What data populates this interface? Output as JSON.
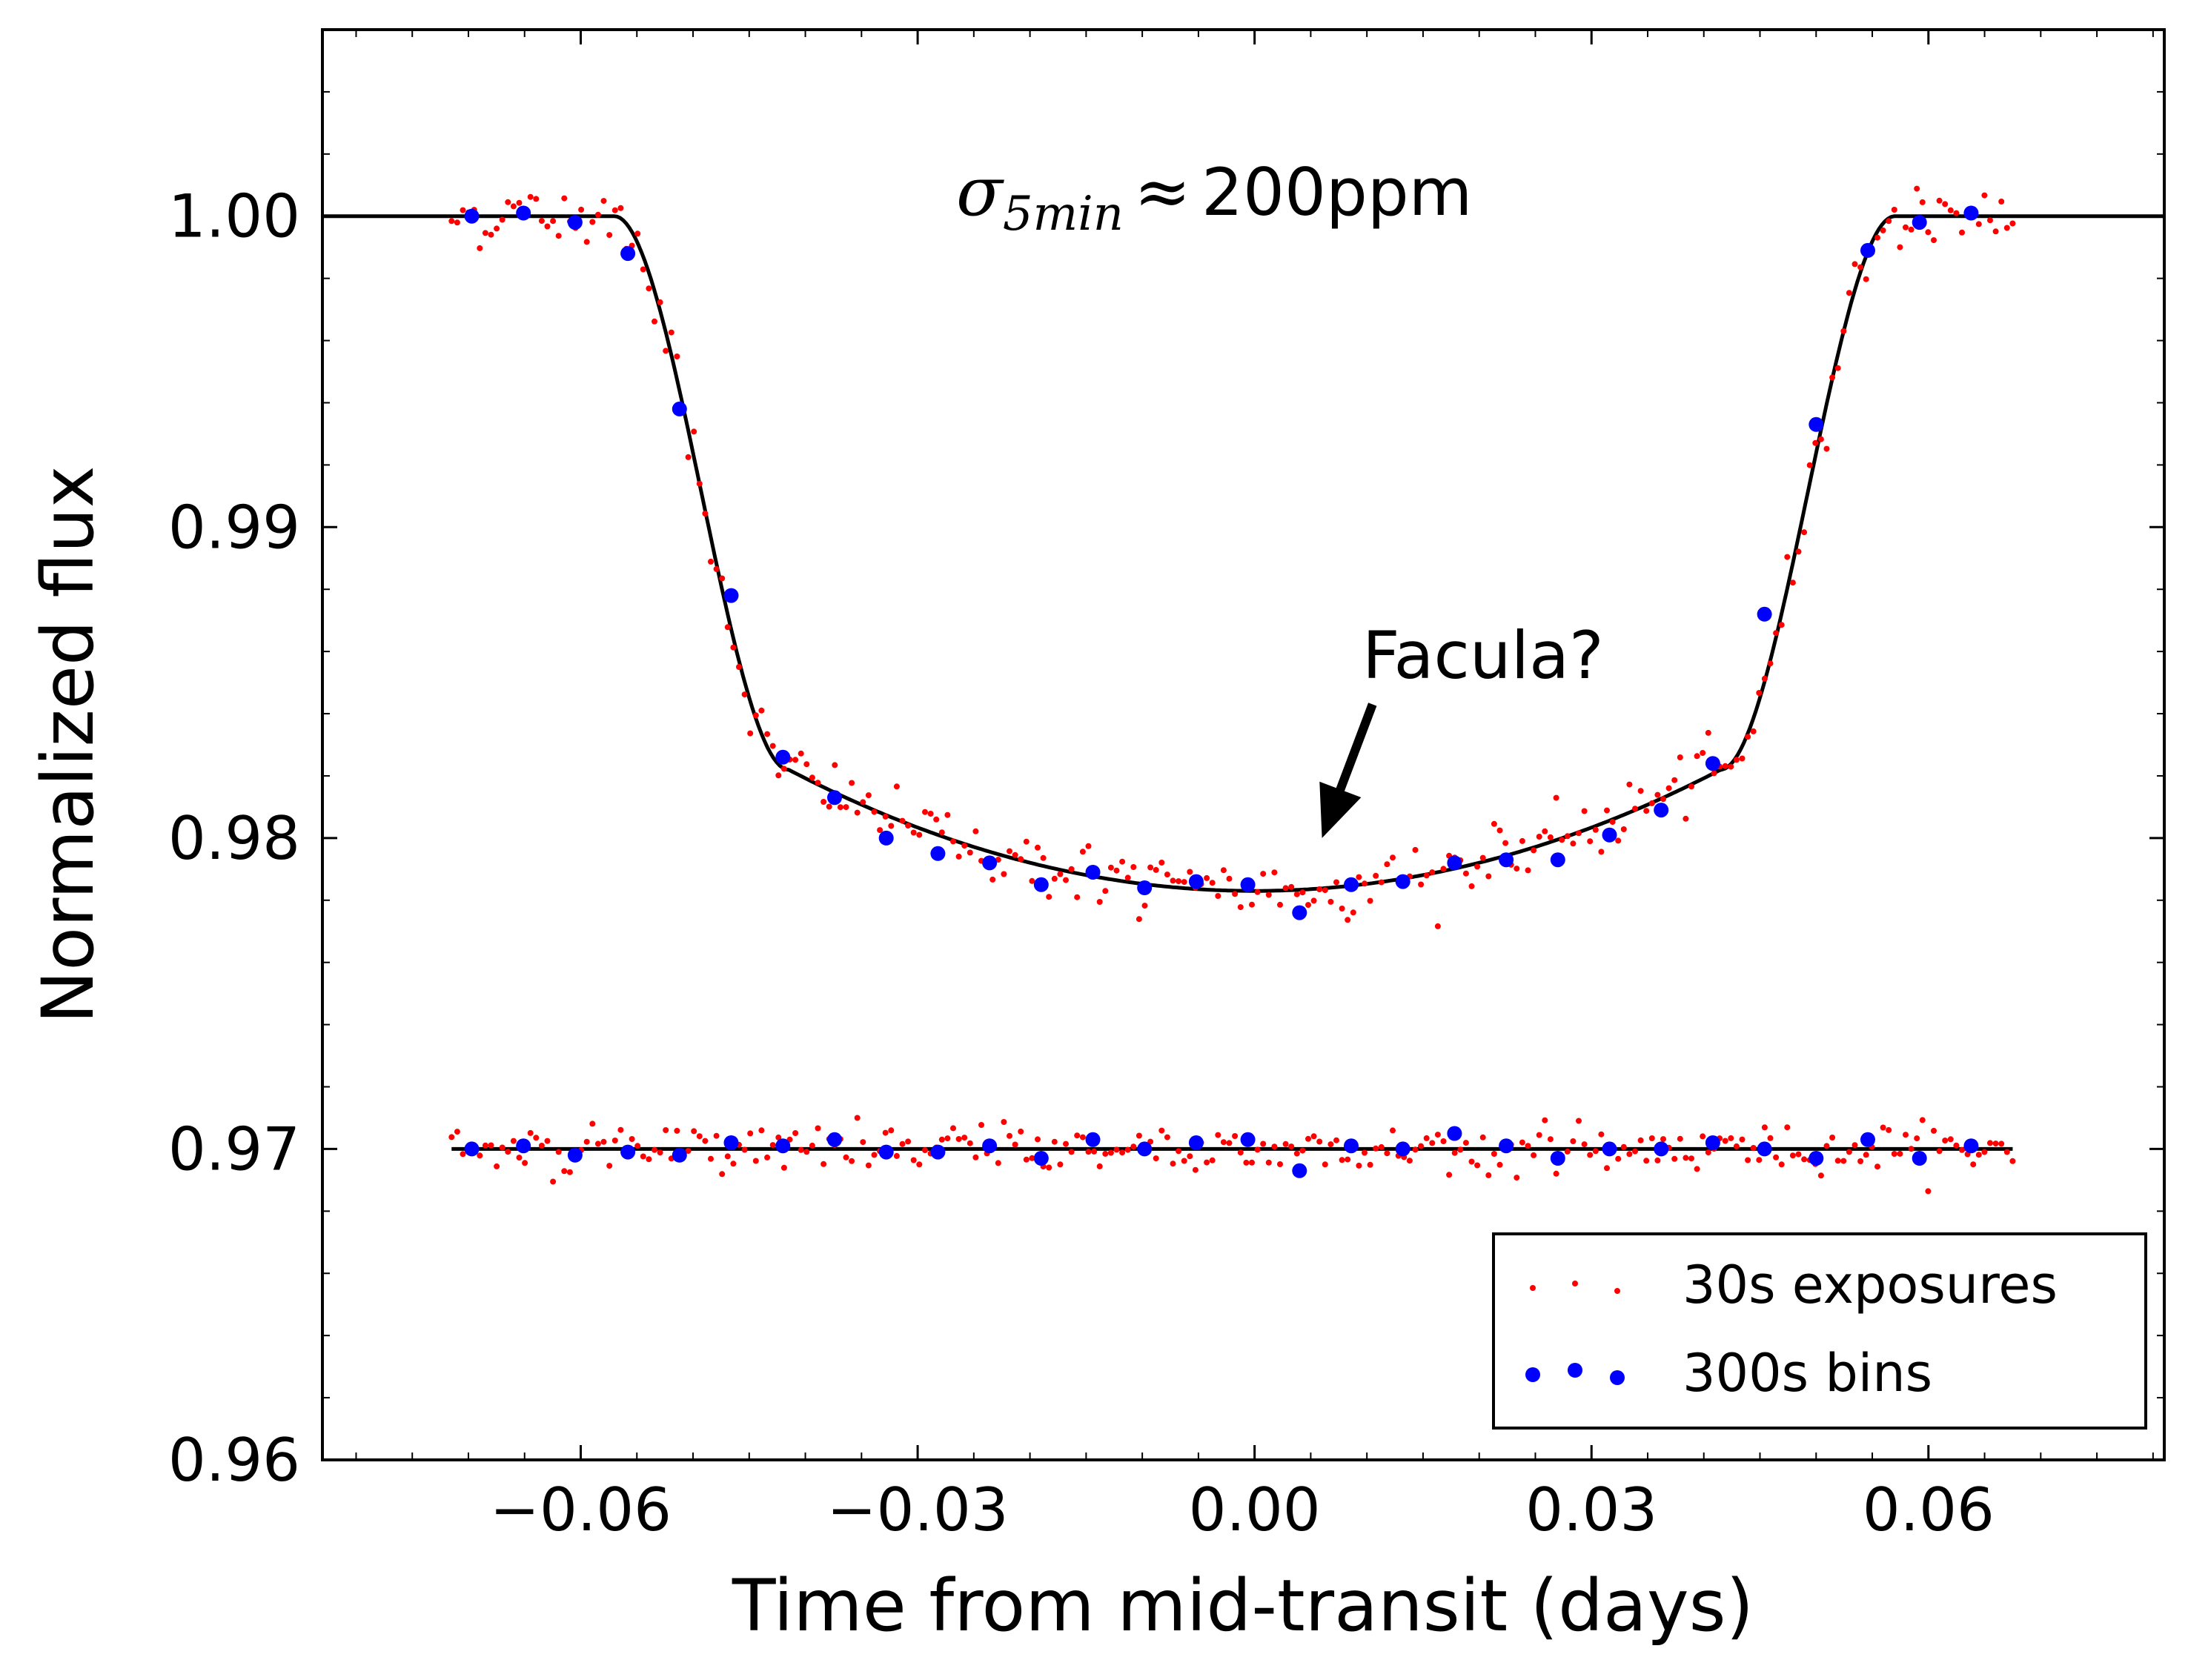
{
  "chart_data": {
    "type": "scatter",
    "title": "",
    "xlabel": "Time from mid-transit (days)",
    "ylabel": "Normalized flux",
    "xlim": [
      -0.083,
      0.081
    ],
    "ylim": [
      0.96,
      1.006
    ],
    "xticks": [
      -0.06,
      -0.03,
      0.0,
      0.03,
      0.06
    ],
    "xtick_labels": [
      "−0.06",
      "−0.03",
      "0.00",
      "0.03",
      "0.06"
    ],
    "yticks": [
      0.96,
      0.97,
      0.98,
      0.99,
      1.0
    ],
    "ytick_labels": [
      "0.96",
      "0.97",
      "0.98",
      "0.99",
      "1.00"
    ],
    "grid": false,
    "legend_position": "bottom-right",
    "annotations": {
      "noise_symbol": "σ",
      "noise_subscript": "5min",
      "noise_relation": "≈",
      "noise_value": "200ppm",
      "facula_label": "Facula?",
      "facula_arrow_tip": [
        0.006,
        0.98
      ],
      "facula_arrow_tail": [
        0.0105,
        0.9843
      ]
    },
    "colors": {
      "raw": "#ff0000",
      "binned": "#0000ff",
      "model": "#000000"
    },
    "model": {
      "name": "transit model",
      "t1": -0.0575,
      "t2": -0.042,
      "t3": 0.0415,
      "t4": 0.057,
      "depth_center": 0.0217,
      "depth_edge": 0.0178,
      "x_range": [
        -0.083,
        0.081
      ]
    },
    "residual_model": {
      "name": "residual baseline",
      "y": 0.97,
      "x_range": [
        -0.0715,
        0.0675
      ]
    },
    "series": [
      {
        "name": "30s exposures",
        "marker": "dot",
        "color": "#ff0000",
        "count": 278,
        "x_range": [
          -0.0715,
          0.0675
        ],
        "scatter_ppm_light": 500,
        "scatter_ppm_residual": 400
      },
      {
        "name": "300s bins",
        "marker": "circle",
        "color": "#0000ff",
        "x": [
          -0.0697,
          -0.0651,
          -0.0605,
          -0.0558,
          -0.0512,
          -0.0466,
          -0.042,
          -0.0374,
          -0.0328,
          -0.0282,
          -0.0236,
          -0.019,
          -0.0144,
          -0.0098,
          -0.0052,
          -0.0006,
          0.004,
          0.0086,
          0.0132,
          0.0178,
          0.0224,
          0.027,
          0.0316,
          0.0362,
          0.0408,
          0.0454,
          0.05,
          0.0546,
          0.0592,
          0.0638
        ],
        "y": [
          1.0,
          1.0001,
          0.9998,
          0.9988,
          0.9938,
          0.9878,
          0.9826,
          0.9813,
          0.98,
          0.9795,
          0.9792,
          0.9785,
          0.9789,
          0.9784,
          0.9786,
          0.9785,
          0.9776,
          0.9785,
          0.9786,
          0.9792,
          0.9793,
          0.9793,
          0.9801,
          0.9809,
          0.9824,
          0.9872,
          0.9933,
          0.9989,
          0.9998,
          1.0001
        ],
        "residual_y": [
          0.97,
          0.9701,
          0.9698,
          0.9699,
          0.9698,
          0.9702,
          0.9701,
          0.9703,
          0.9699,
          0.9699,
          0.9701,
          0.9697,
          0.9703,
          0.97,
          0.9702,
          0.9703,
          0.9693,
          0.9701,
          0.97,
          0.9705,
          0.9701,
          0.9697,
          0.97,
          0.97,
          0.9702,
          0.97,
          0.9697,
          0.9703,
          0.9697,
          0.9701
        ]
      }
    ]
  }
}
